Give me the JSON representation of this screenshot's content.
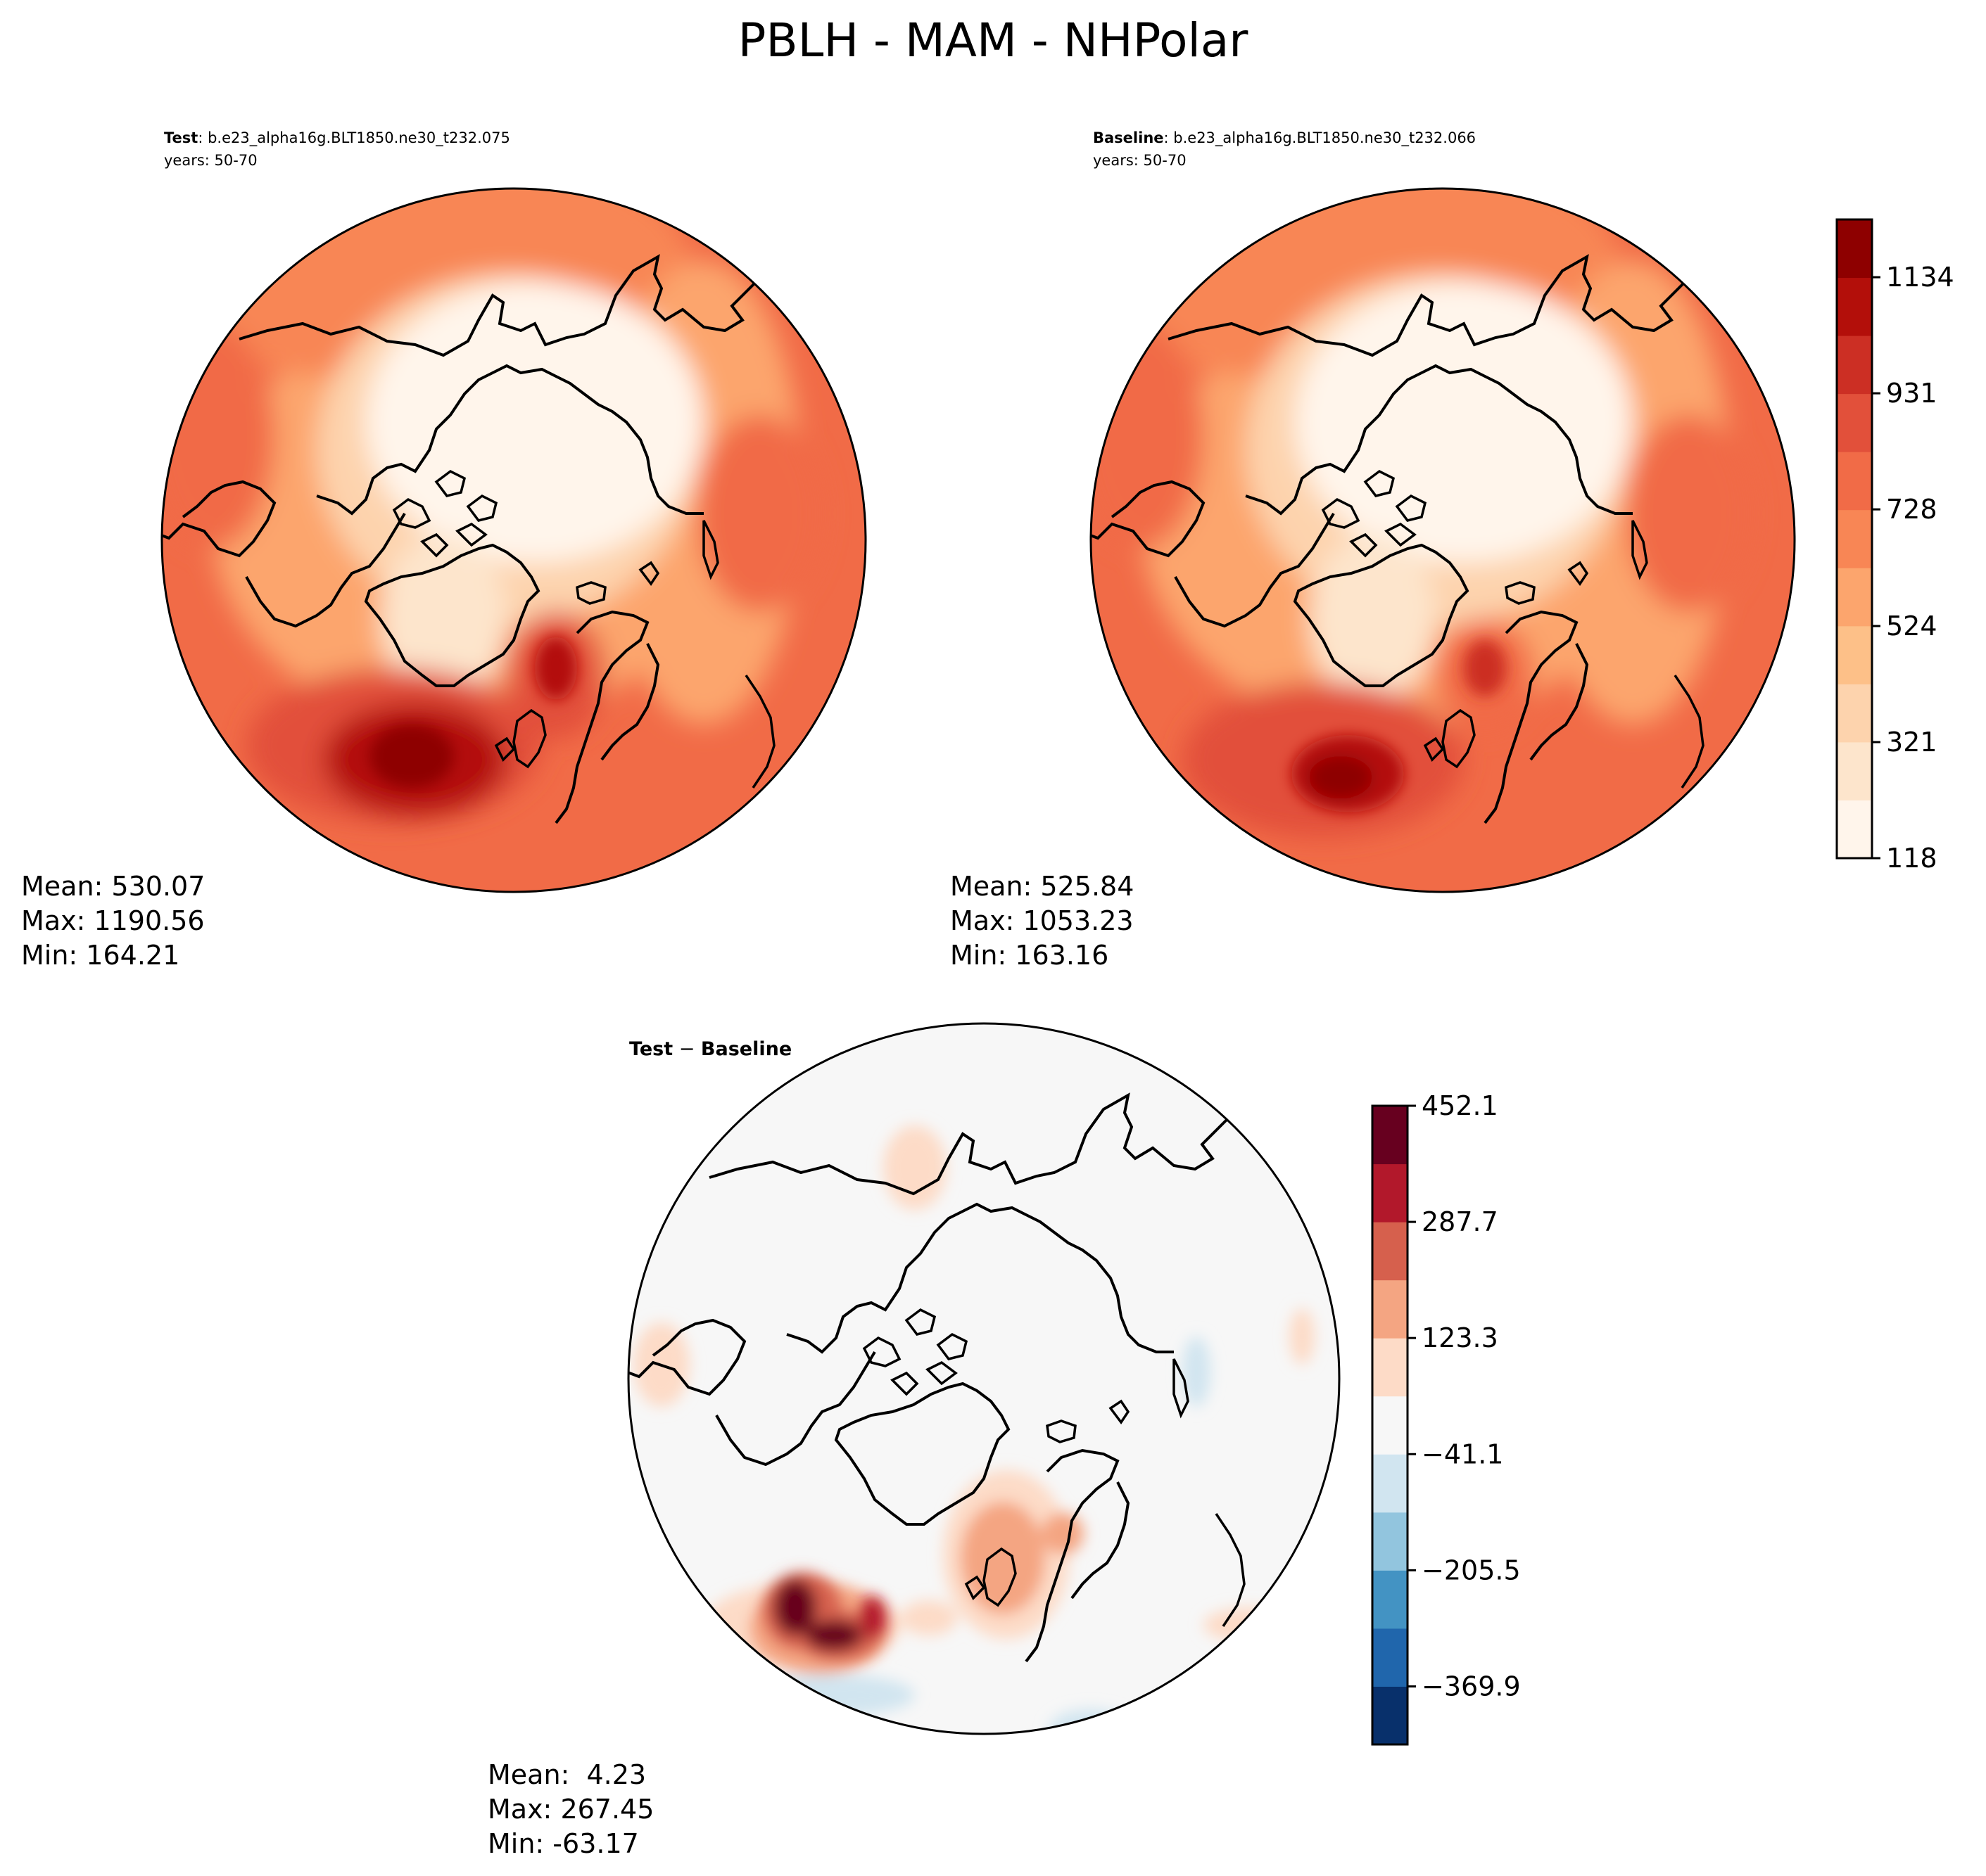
{
  "figure": {
    "title": "PBLH - MAM - NHPolar"
  },
  "panels": {
    "test": {
      "label_bold": "Test",
      "label_rest": ": b.e23_alpha16g.BLT1850.ne30_t232.075",
      "years": "years: 50-70",
      "stats": {
        "mean": "Mean: 530.07",
        "max": "Max: 1190.56",
        "min": "Min: 164.21"
      }
    },
    "baseline": {
      "label_bold": "Baseline",
      "label_rest": ": b.e23_alpha16g.BLT1850.ne30_t232.066",
      "years": "years: 50-70",
      "stats": {
        "mean": "Mean: 525.84",
        "max": "Max: 1053.23",
        "min": "Min: 163.16"
      }
    },
    "diff": {
      "label_a": "Test",
      "label_op": " − ",
      "label_b": "Baseline",
      "stats": {
        "mean": "Mean:  4.23",
        "max": "Max: 267.45",
        "min": "Min: -63.17"
      }
    }
  },
  "colorbars": {
    "abs": {
      "ticks": [
        "118",
        "321",
        "524",
        "728",
        "931",
        "1134"
      ],
      "tick_values": [
        118,
        321,
        524,
        728,
        931,
        1134
      ],
      "range": [
        118,
        1235
      ],
      "colors": [
        "#fff5eb",
        "#fde5cc",
        "#fdd3ad",
        "#fdc088",
        "#fca56d",
        "#f88655",
        "#f16b47",
        "#e2503a",
        "#cc2f24",
        "#b30f0a",
        "#8e0000"
      ]
    },
    "diff": {
      "ticks": [
        "452.1",
        "287.7",
        "123.3",
        "−41.1",
        "−205.5",
        "−369.9"
      ],
      "tick_values": [
        452.1,
        287.7,
        123.3,
        -41.1,
        -205.5,
        -369.9
      ],
      "range": [
        -452.1,
        452.1
      ],
      "colors": [
        "#08306b",
        "#2066ac",
        "#4393c3",
        "#92c5de",
        "#d1e5f0",
        "#f7f7f7",
        "#fddbc7",
        "#f4a582",
        "#d6604d",
        "#b2182b",
        "#67001f"
      ]
    }
  }
}
